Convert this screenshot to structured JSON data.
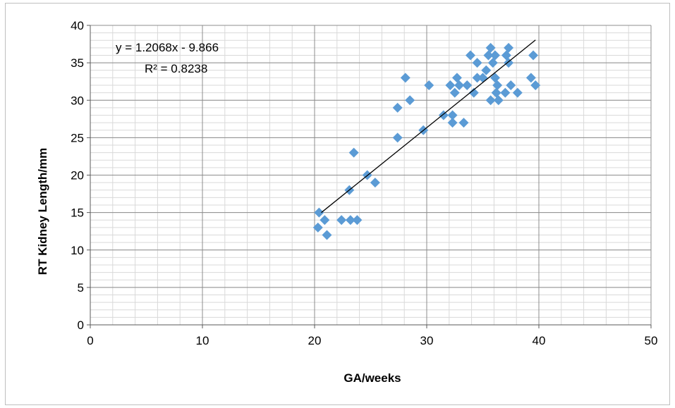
{
  "chart_data": {
    "type": "scatter",
    "title": "",
    "xlabel": "GA/weeks",
    "ylabel": "RT Kidney Length/mm",
    "xlim": [
      0,
      50
    ],
    "ylim": [
      0,
      40
    ],
    "x_ticks": [
      0,
      10,
      20,
      30,
      40,
      50
    ],
    "y_ticks": [
      0,
      5,
      10,
      15,
      20,
      25,
      30,
      35,
      40
    ],
    "x_minor_step": 2,
    "y_minor_step": 1,
    "grid": true,
    "marker": "diamond",
    "marker_color": "#5b9bd5",
    "trendline": {
      "type": "linear",
      "slope": 1.2068,
      "intercept": -9.866,
      "x_range": [
        20.6,
        39.7
      ],
      "color": "#000000",
      "equation_label": "y = 1.2068x - 9.866",
      "r2_label": "R² = 0.8238"
    },
    "points": [
      [
        20.3,
        13
      ],
      [
        20.4,
        15
      ],
      [
        20.9,
        14
      ],
      [
        21.1,
        12
      ],
      [
        22.4,
        14
      ],
      [
        23.1,
        18
      ],
      [
        23.2,
        14
      ],
      [
        23.5,
        23
      ],
      [
        23.8,
        14
      ],
      [
        24.7,
        20
      ],
      [
        25.4,
        19
      ],
      [
        27.4,
        29
      ],
      [
        27.4,
        25
      ],
      [
        28.1,
        33
      ],
      [
        28.5,
        30
      ],
      [
        29.7,
        26
      ],
      [
        30.2,
        32
      ],
      [
        31.5,
        28
      ],
      [
        32.1,
        32
      ],
      [
        32.3,
        27
      ],
      [
        32.3,
        28
      ],
      [
        32.5,
        31
      ],
      [
        32.7,
        33
      ],
      [
        32.9,
        32
      ],
      [
        33.3,
        27
      ],
      [
        33.6,
        32
      ],
      [
        33.9,
        36
      ],
      [
        34.2,
        31
      ],
      [
        34.5,
        35
      ],
      [
        34.5,
        33
      ],
      [
        35.0,
        33
      ],
      [
        35.3,
        34
      ],
      [
        35.5,
        36
      ],
      [
        35.7,
        37
      ],
      [
        35.7,
        30
      ],
      [
        35.9,
        35
      ],
      [
        36.1,
        36
      ],
      [
        36.1,
        33
      ],
      [
        36.2,
        31
      ],
      [
        36.3,
        32
      ],
      [
        36.4,
        30
      ],
      [
        37.0,
        31
      ],
      [
        37.1,
        36
      ],
      [
        37.3,
        35
      ],
      [
        37.3,
        37
      ],
      [
        37.5,
        32
      ],
      [
        38.1,
        31
      ],
      [
        39.3,
        33
      ],
      [
        39.5,
        36
      ],
      [
        39.7,
        32
      ]
    ]
  }
}
